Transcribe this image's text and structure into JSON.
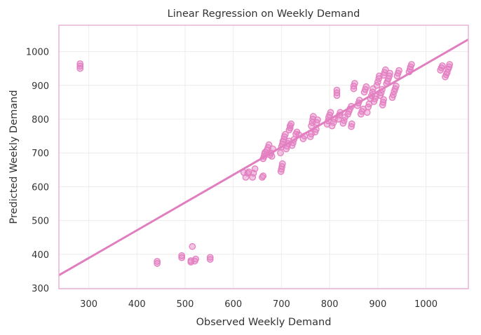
{
  "chart_data": {
    "type": "scatter",
    "title": "Linear Regression on Weekly Demand",
    "xlabel": "Observed Weekly Demand",
    "ylabel": "Predicted Weekly Demand",
    "xlim": [
      238,
      1088
    ],
    "ylim": [
      298,
      1078
    ],
    "xticks": [
      300,
      400,
      500,
      600,
      700,
      800,
      900,
      1000
    ],
    "yticks": [
      300,
      400,
      500,
      600,
      700,
      800,
      900,
      1000
    ],
    "grid": true,
    "colors": {
      "points": "#e37fc1",
      "line": "#e07ec0",
      "frame": "#e9b4d6",
      "grid": "#ececec",
      "text": "#333333"
    },
    "regression_line": {
      "x": [
        238,
        1088
      ],
      "y": [
        338,
        1036
      ]
    },
    "points": [
      [
        282,
        950
      ],
      [
        282,
        957
      ],
      [
        282,
        964
      ],
      [
        442,
        373
      ],
      [
        442,
        379
      ],
      [
        493,
        390
      ],
      [
        493,
        396
      ],
      [
        515,
        423
      ],
      [
        512,
        377
      ],
      [
        512,
        381
      ],
      [
        520,
        380
      ],
      [
        522,
        386
      ],
      [
        552,
        385
      ],
      [
        552,
        391
      ],
      [
        622,
        642
      ],
      [
        626,
        628
      ],
      [
        630,
        640
      ],
      [
        632,
        644
      ],
      [
        640,
        628
      ],
      [
        642,
        640
      ],
      [
        645,
        653
      ],
      [
        660,
        628
      ],
      [
        662,
        632
      ],
      [
        662,
        683
      ],
      [
        664,
        690
      ],
      [
        665,
        697
      ],
      [
        666,
        702
      ],
      [
        670,
        708
      ],
      [
        672,
        716
      ],
      [
        674,
        724
      ],
      [
        676,
        694
      ],
      [
        678,
        700
      ],
      [
        680,
        690
      ],
      [
        682,
        712
      ],
      [
        699,
        645
      ],
      [
        700,
        652
      ],
      [
        701,
        660
      ],
      [
        702,
        668
      ],
      [
        698,
        700
      ],
      [
        700,
        718
      ],
      [
        702,
        726
      ],
      [
        703,
        734
      ],
      [
        705,
        740
      ],
      [
        706,
        748
      ],
      [
        708,
        755
      ],
      [
        710,
        712
      ],
      [
        712,
        720
      ],
      [
        714,
        728
      ],
      [
        716,
        735
      ],
      [
        716,
        768
      ],
      [
        718,
        774
      ],
      [
        718,
        780
      ],
      [
        720,
        786
      ],
      [
        722,
        722
      ],
      [
        724,
        730
      ],
      [
        726,
        740
      ],
      [
        730,
        756
      ],
      [
        732,
        762
      ],
      [
        736,
        754
      ],
      [
        745,
        742
      ],
      [
        748,
        750
      ],
      [
        760,
        748
      ],
      [
        762,
        756
      ],
      [
        762,
        780
      ],
      [
        764,
        790
      ],
      [
        765,
        800
      ],
      [
        766,
        808
      ],
      [
        770,
        762
      ],
      [
        772,
        770
      ],
      [
        773,
        790
      ],
      [
        775,
        798
      ],
      [
        795,
        785
      ],
      [
        797,
        795
      ],
      [
        798,
        805
      ],
      [
        800,
        812
      ],
      [
        802,
        820
      ],
      [
        805,
        780
      ],
      [
        808,
        790
      ],
      [
        810,
        800
      ],
      [
        815,
        870
      ],
      [
        815,
        878
      ],
      [
        815,
        886
      ],
      [
        818,
        800
      ],
      [
        820,
        812
      ],
      [
        822,
        820
      ],
      [
        828,
        788
      ],
      [
        830,
        796
      ],
      [
        832,
        806
      ],
      [
        838,
        815
      ],
      [
        840,
        823
      ],
      [
        842,
        830
      ],
      [
        845,
        838
      ],
      [
        845,
        778
      ],
      [
        846,
        786
      ],
      [
        850,
        890
      ],
      [
        850,
        898
      ],
      [
        852,
        906
      ],
      [
        858,
        840
      ],
      [
        860,
        848
      ],
      [
        862,
        856
      ],
      [
        865,
        815
      ],
      [
        867,
        823
      ],
      [
        870,
        830
      ],
      [
        872,
        880
      ],
      [
        874,
        888
      ],
      [
        876,
        896
      ],
      [
        878,
        820
      ],
      [
        880,
        836
      ],
      [
        882,
        845
      ],
      [
        885,
        860
      ],
      [
        887,
        870
      ],
      [
        889,
        880
      ],
      [
        890,
        890
      ],
      [
        892,
        852
      ],
      [
        894,
        860
      ],
      [
        896,
        868
      ],
      [
        898,
        900
      ],
      [
        900,
        910
      ],
      [
        902,
        920
      ],
      [
        903,
        928
      ],
      [
        905,
        870
      ],
      [
        907,
        878
      ],
      [
        909,
        888
      ],
      [
        910,
        842
      ],
      [
        911,
        850
      ],
      [
        912,
        858
      ],
      [
        912,
        930
      ],
      [
        914,
        938
      ],
      [
        916,
        946
      ],
      [
        918,
        905
      ],
      [
        920,
        912
      ],
      [
        922,
        920
      ],
      [
        924,
        928
      ],
      [
        925,
        936
      ],
      [
        930,
        864
      ],
      [
        932,
        872
      ],
      [
        934,
        882
      ],
      [
        936,
        890
      ],
      [
        938,
        898
      ],
      [
        940,
        928
      ],
      [
        942,
        936
      ],
      [
        944,
        944
      ],
      [
        965,
        940
      ],
      [
        967,
        948
      ],
      [
        968,
        955
      ],
      [
        970,
        962
      ],
      [
        1030,
        945
      ],
      [
        1032,
        952
      ],
      [
        1034,
        958
      ],
      [
        1040,
        925
      ],
      [
        1042,
        932
      ],
      [
        1044,
        938
      ],
      [
        1046,
        948
      ],
      [
        1048,
        955
      ],
      [
        1049,
        962
      ]
    ]
  }
}
